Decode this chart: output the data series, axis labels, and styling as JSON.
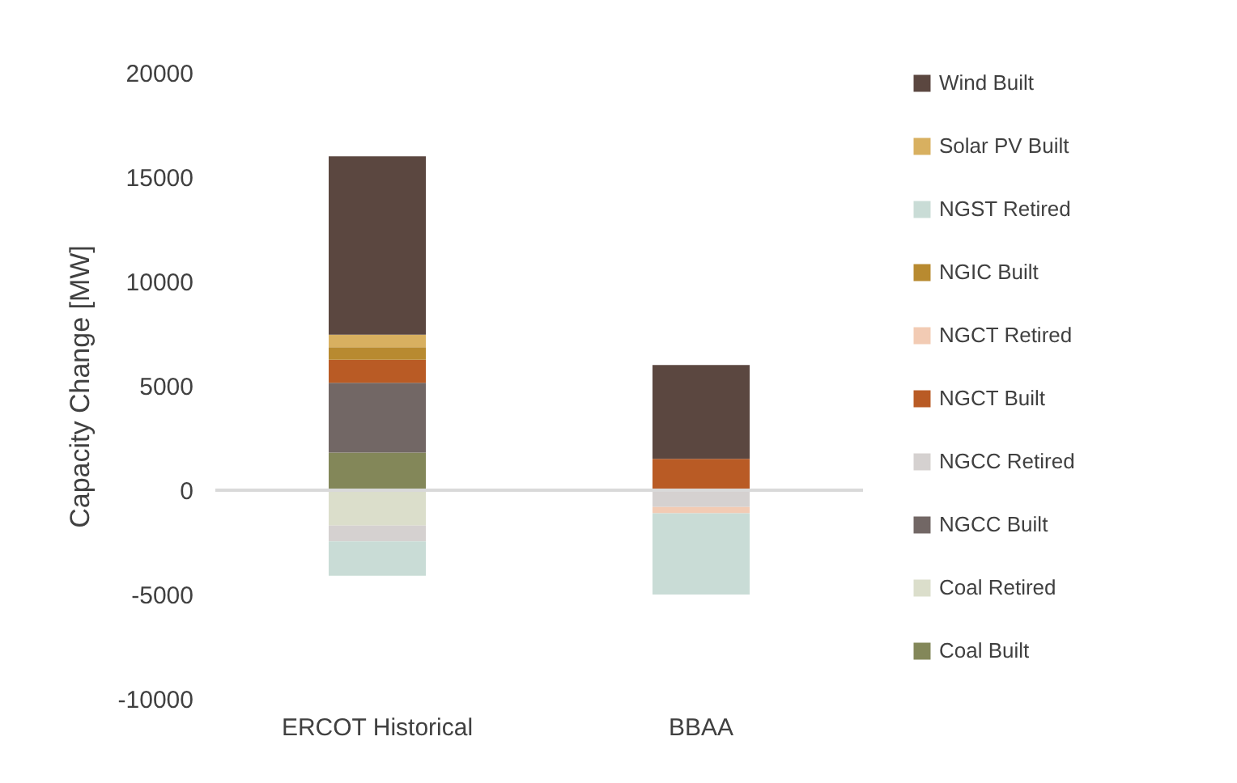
{
  "chart_data": {
    "type": "bar",
    "stacked": true,
    "ylabel": "Capacity Change [MW]",
    "categories": [
      "ERCOT Historical",
      "BBAA"
    ],
    "ylim": [
      -10000,
      20000
    ],
    "yticks": [
      -10000,
      -5000,
      0,
      5000,
      10000,
      15000,
      20000
    ],
    "grid": false,
    "legend": "right",
    "ref_lines": [
      {
        "axis": "y",
        "value": 0,
        "color": "#d9d9d9"
      }
    ],
    "series": [
      {
        "name": "Coal Built",
        "color": "#838759",
        "values": [
          1800,
          0
        ]
      },
      {
        "name": "Coal Retired",
        "color": "#dbdecb",
        "values": [
          -1700,
          0
        ]
      },
      {
        "name": "NGCC Built",
        "color": "#726765",
        "values": [
          3350,
          0
        ]
      },
      {
        "name": "NGCC Retired",
        "color": "#d5d1d0",
        "values": [
          -750,
          -800
        ]
      },
      {
        "name": "NGCT Built",
        "color": "#b95b25",
        "values": [
          1100,
          1500
        ]
      },
      {
        "name": "NGCT Retired",
        "color": "#f2cbb4",
        "values": [
          0,
          -300
        ]
      },
      {
        "name": "NGIC Built",
        "color": "#b88a30",
        "values": [
          600,
          0
        ]
      },
      {
        "name": "NGST Retired",
        "color": "#c9dcd6",
        "values": [
          -1650,
          -3900
        ]
      },
      {
        "name": "Solar PV Built",
        "color": "#d8b060",
        "values": [
          600,
          0
        ]
      },
      {
        "name": "Wind Built",
        "color": "#5b4740",
        "values": [
          8550,
          4500
        ]
      }
    ]
  }
}
